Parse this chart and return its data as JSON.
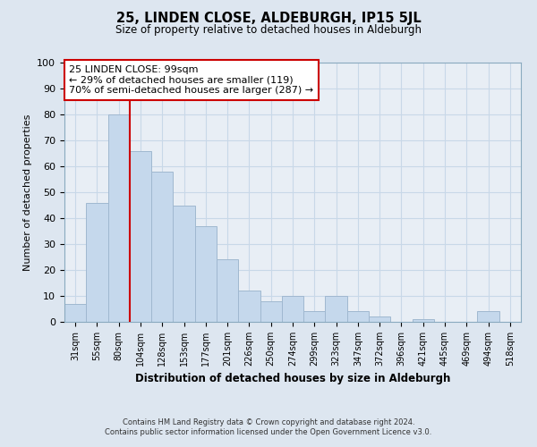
{
  "title": "25, LINDEN CLOSE, ALDEBURGH, IP15 5JL",
  "subtitle": "Size of property relative to detached houses in Aldeburgh",
  "xlabel": "Distribution of detached houses by size in Aldeburgh",
  "ylabel": "Number of detached properties",
  "bar_labels": [
    "31sqm",
    "55sqm",
    "80sqm",
    "104sqm",
    "128sqm",
    "153sqm",
    "177sqm",
    "201sqm",
    "226sqm",
    "250sqm",
    "274sqm",
    "299sqm",
    "323sqm",
    "347sqm",
    "372sqm",
    "396sqm",
    "421sqm",
    "445sqm",
    "469sqm",
    "494sqm",
    "518sqm"
  ],
  "bar_heights": [
    7,
    46,
    80,
    66,
    58,
    45,
    37,
    24,
    12,
    8,
    10,
    4,
    10,
    4,
    2,
    0,
    1,
    0,
    0,
    4,
    0
  ],
  "bar_color": "#c5d8ec",
  "bar_edge_color": "#a0b8d0",
  "vline_index": 3,
  "vline_color": "#cc0000",
  "annotation_title": "25 LINDEN CLOSE: 99sqm",
  "annotation_line1": "← 29% of detached houses are smaller (119)",
  "annotation_line2": "70% of semi-detached houses are larger (287) →",
  "annotation_box_color": "#cc0000",
  "ylim": [
    0,
    100
  ],
  "grid_color": "#c8d8e8",
  "background_color": "#dde6f0",
  "plot_bg_color": "#e8eef5",
  "footnote1": "Contains HM Land Registry data © Crown copyright and database right 2024.",
  "footnote2": "Contains public sector information licensed under the Open Government Licence v3.0."
}
